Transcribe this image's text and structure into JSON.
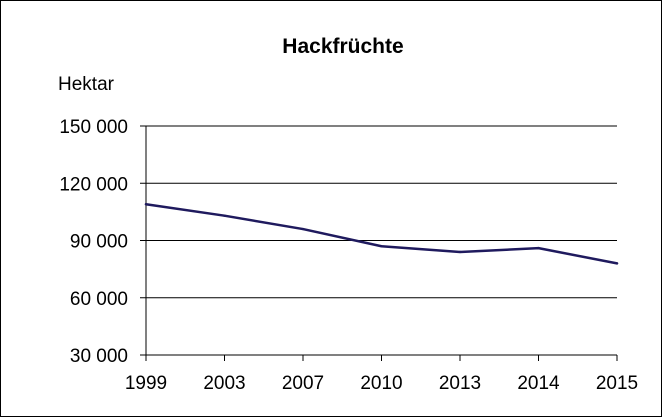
{
  "chart_data": {
    "type": "line",
    "title": "Hackfrüchte",
    "ylabel": "Hektar",
    "xlabel": "",
    "categories": [
      "1999",
      "2003",
      "2007",
      "2010",
      "2013",
      "2014",
      "2015"
    ],
    "series": [
      {
        "values": [
          109000,
          103000,
          96000,
          87000,
          84000,
          86000,
          78000
        ],
        "color": "#1f1a5e"
      }
    ],
    "ylim": [
      30000,
      150000
    ],
    "yticks": [
      30000,
      60000,
      90000,
      120000,
      150000
    ],
    "ytick_labels": [
      "30 000",
      "60 000",
      "90 000",
      "120 000",
      "150 000"
    ],
    "grid": "horizontal",
    "legend": "none"
  }
}
